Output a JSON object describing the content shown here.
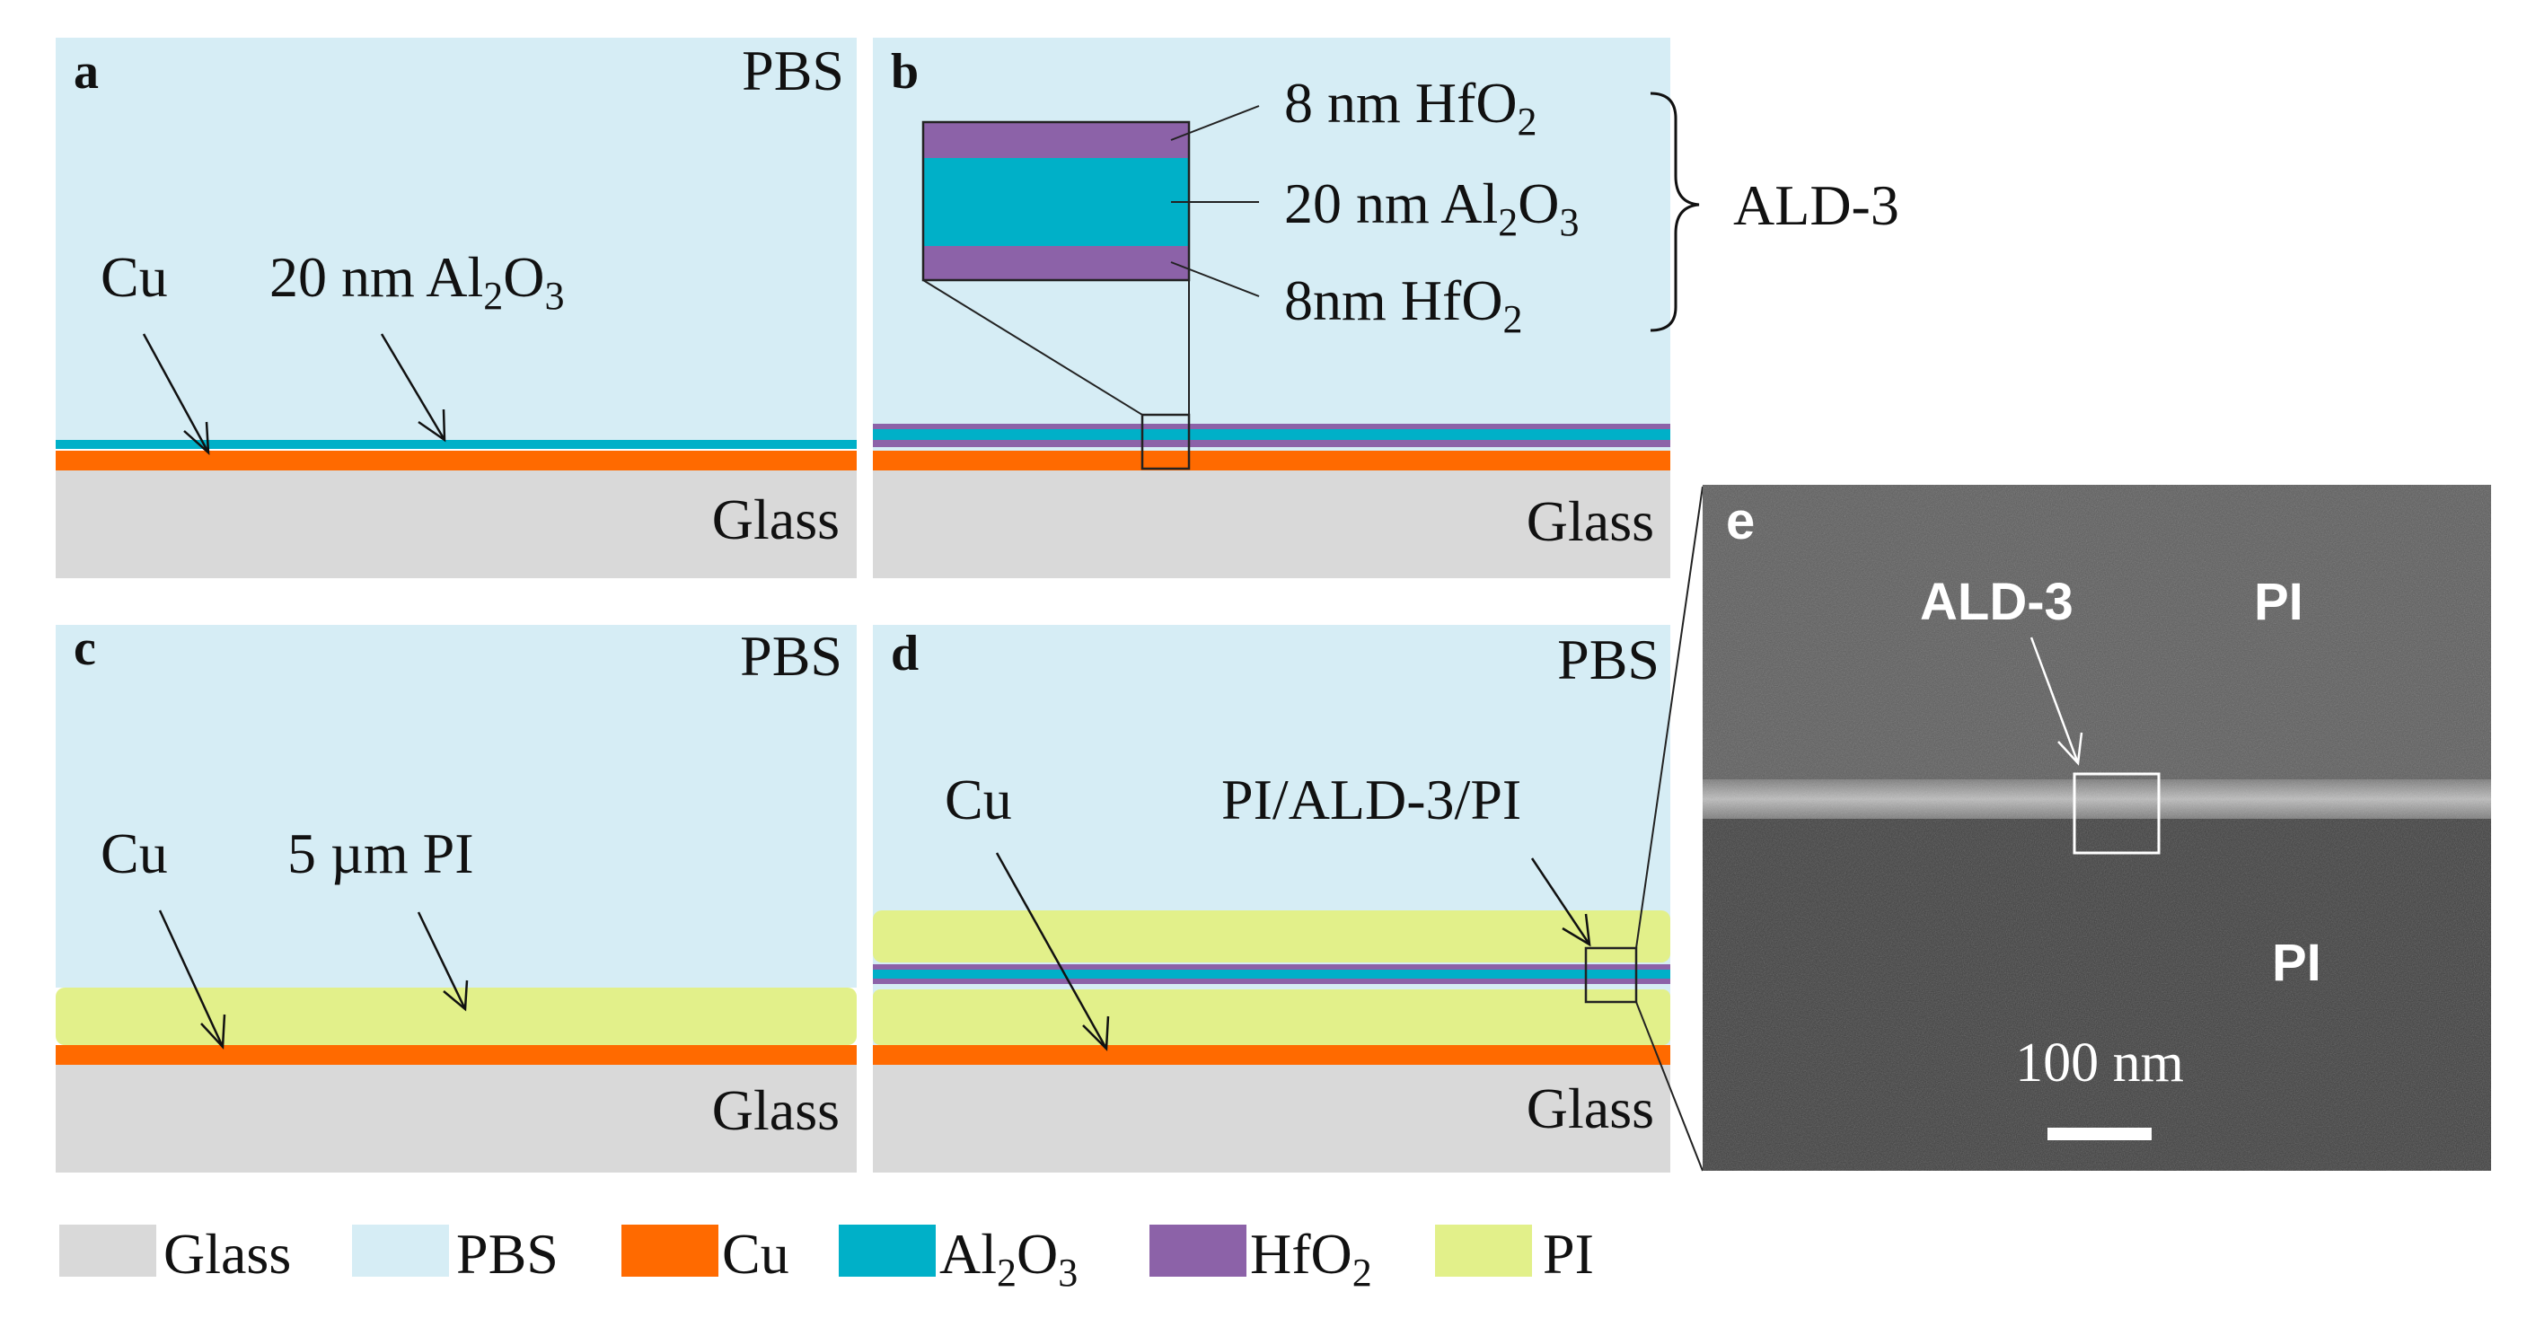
{
  "colors": {
    "glass": "#d9d9d9",
    "pbs": "#d6edf5",
    "cu": "#ff6a00",
    "al2o3": "#00b0c8",
    "hfo2": "#8c62a8",
    "pi": "#e2f08a"
  },
  "panels": {
    "a": {
      "letter": "a",
      "liquid": "PBS",
      "substrate": "Glass",
      "metal": "Cu",
      "coating": "20 nm Al",
      "coating_sub1": "2",
      "coating_mid": "O",
      "coating_sub2": "3"
    },
    "b": {
      "letter": "b",
      "substrate": "Glass",
      "layer_top": "8 nm HfO",
      "layer_top_sub": "2",
      "layer_mid": "20 nm Al",
      "layer_mid_sub1": "2",
      "layer_mid_o": "O",
      "layer_mid_sub2": "3",
      "layer_bot": "8nm HfO",
      "layer_bot_sub": "2",
      "stack_name": "ALD-3"
    },
    "c": {
      "letter": "c",
      "liquid": "PBS",
      "substrate": "Glass",
      "metal": "Cu",
      "coating": "5 µm PI"
    },
    "d": {
      "letter": "d",
      "liquid": "PBS",
      "substrate": "Glass",
      "metal": "Cu",
      "coating": "PI/ALD-3/PI"
    },
    "e": {
      "letter": "e",
      "layer": "ALD-3",
      "top_material": "PI",
      "bottom_material": "PI",
      "scale_bar": "100 nm"
    }
  },
  "legend": [
    {
      "label": "Glass",
      "color_key": "glass"
    },
    {
      "label": "PBS",
      "color_key": "pbs"
    },
    {
      "label": "Cu",
      "color_key": "cu"
    },
    {
      "label": "Al",
      "sub1": "2",
      "mid": "O",
      "sub2": "3",
      "color_key": "al2o3"
    },
    {
      "label": "HfO",
      "sub1": "2",
      "color_key": "hfo2"
    },
    {
      "label": "PI",
      "color_key": "pi"
    }
  ]
}
